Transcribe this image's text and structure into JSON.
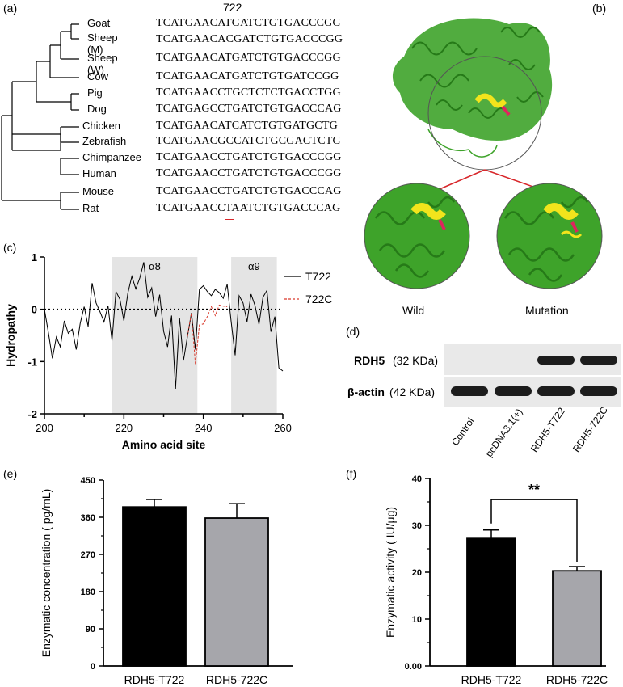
{
  "panels": {
    "a": "(a)",
    "b": "(b)",
    "c": "(c)",
    "d": "(d)",
    "e": "(e)",
    "f": "(f)"
  },
  "alignment": {
    "site_label": "722",
    "species": [
      "Goat",
      "Sheep (M)",
      "Sheep (W)",
      "Cow",
      "Pig",
      "Dog",
      "Chicken",
      "Zebrafish",
      "Chimpanzee",
      "Human",
      "Mouse",
      "Rat"
    ],
    "sequences": [
      "TCATGAACATGATCTGTGACCCGG",
      "TCATGAACACGATCTGTGACCCGG",
      "TCATGAACATGATCTGTGACCCGG",
      "TCATGAACATGATCTGTGATCCGG",
      "TCATGAACCTGCTCTCTGACCTGG",
      "TCATGAGCCTGATCTGTGACCCAG",
      "TCATGAACATCATCTGTGATGCTG",
      "TCATGAACGCCATCTGCGACTCTG",
      "TCATGAACCTGATCTGTGACCCGG",
      "TCATGAACCTGATCTGTGACCCGG",
      "TCATGAACCTGATCTGTGACCCAG",
      "TCATGAACCTAATCTGTGACCCAG"
    ]
  },
  "structure": {
    "wild_label": "Wild",
    "mutation_label": "Mutation",
    "protein_color": "#3ea32a",
    "helix_highlight": "#f2e41c",
    "mutation_color": "#e0245e"
  },
  "western": {
    "rows": [
      {
        "name": "RDH5",
        "size": "(32 KDa)"
      },
      {
        "name": "β-actin",
        "size": "(42 KDa)"
      }
    ],
    "lanes": [
      "Control",
      "pcDNA3.1(+)",
      "RDH5-T722",
      "RDH5-722C"
    ]
  },
  "chart_data": [
    {
      "panel": "c",
      "type": "line",
      "xlabel": "Amino acid site",
      "ylabel": "Hydropathy",
      "xlim": [
        200,
        260
      ],
      "ylim": [
        -2,
        1
      ],
      "xticks": [
        "200",
        "220",
        "240",
        "260"
      ],
      "yticks": [
        "1",
        "0",
        "-1",
        "-2"
      ],
      "regions": [
        {
          "label": "α8",
          "x0": 217,
          "x1": 238.5
        },
        {
          "label": "α9",
          "x0": 247,
          "x1": 258.5
        }
      ],
      "reference_line": 0,
      "series": [
        {
          "name": "T722",
          "color": "#000000",
          "style": "solid",
          "x": [
            200,
            201,
            202,
            203,
            204,
            205,
            206,
            207,
            208,
            209,
            210,
            211,
            212,
            213,
            214,
            215,
            216,
            217,
            218,
            219,
            220,
            221,
            222,
            223,
            224,
            225,
            226,
            227,
            228,
            229,
            230,
            231,
            232,
            233,
            234,
            235,
            236,
            237,
            238,
            239,
            240,
            241,
            242,
            243,
            244,
            245,
            246,
            247,
            248,
            249,
            250,
            251,
            252,
            253,
            254,
            255,
            256,
            257,
            258,
            259,
            260
          ],
          "values": [
            0.0,
            -0.45,
            -0.94,
            -0.53,
            -0.72,
            -0.22,
            -0.46,
            -0.38,
            -0.77,
            -0.27,
            0.05,
            -0.33,
            0.5,
            0.12,
            -0.05,
            -0.24,
            0.07,
            -0.6,
            0.34,
            0.19,
            -0.22,
            0.31,
            0.63,
            0.39,
            0.6,
            0.9,
            0.23,
            0.41,
            -0.14,
            0.28,
            -0.42,
            -0.72,
            -0.12,
            -1.52,
            -0.16,
            -0.98,
            -0.52,
            -0.07,
            -0.77,
            0.38,
            0.45,
            0.34,
            0.26,
            0.38,
            0.32,
            0.21,
            0.48,
            -0.24,
            -0.88,
            0.26,
            0.12,
            -0.24,
            0.29,
            0.07,
            -0.29,
            0.23,
            0.36,
            -0.43,
            -0.14,
            -1.12,
            -1.18
          ]
        },
        {
          "name": "722C",
          "color": "#d9382a",
          "style": "dashed",
          "x": [
            236,
            237,
            238,
            239,
            240,
            241,
            242,
            243,
            244,
            245,
            246
          ],
          "values": [
            -0.52,
            -0.07,
            -1.05,
            -0.3,
            -0.28,
            -0.14,
            0.05,
            -0.12,
            0.08,
            0.06,
            0.05
          ]
        }
      ]
    },
    {
      "panel": "e",
      "type": "bar",
      "categories": [
        "RDH5-T722",
        "RDH5-722C"
      ],
      "values": [
        385,
        358
      ],
      "errors": [
        18,
        35
      ],
      "colors": [
        "#000000",
        "#a6a6ab"
      ],
      "ylabel": "Enzymatic concentration ( pg/mL)",
      "ylim": [
        0,
        450
      ],
      "yticks": [
        "0",
        "90",
        "180",
        "270",
        "360",
        "450"
      ]
    },
    {
      "panel": "f",
      "type": "bar",
      "categories": [
        "RDH5-T722",
        "RDH5-722C"
      ],
      "values": [
        27.2,
        20.3
      ],
      "errors": [
        1.8,
        0.9
      ],
      "colors": [
        "#000000",
        "#a6a6ab"
      ],
      "ylabel": "Enzymatic activity ( IU/μg)",
      "ylim": [
        0,
        40
      ],
      "yticks": [
        "0.00",
        "10",
        "20",
        "30",
        "40"
      ],
      "significance": "**"
    }
  ]
}
